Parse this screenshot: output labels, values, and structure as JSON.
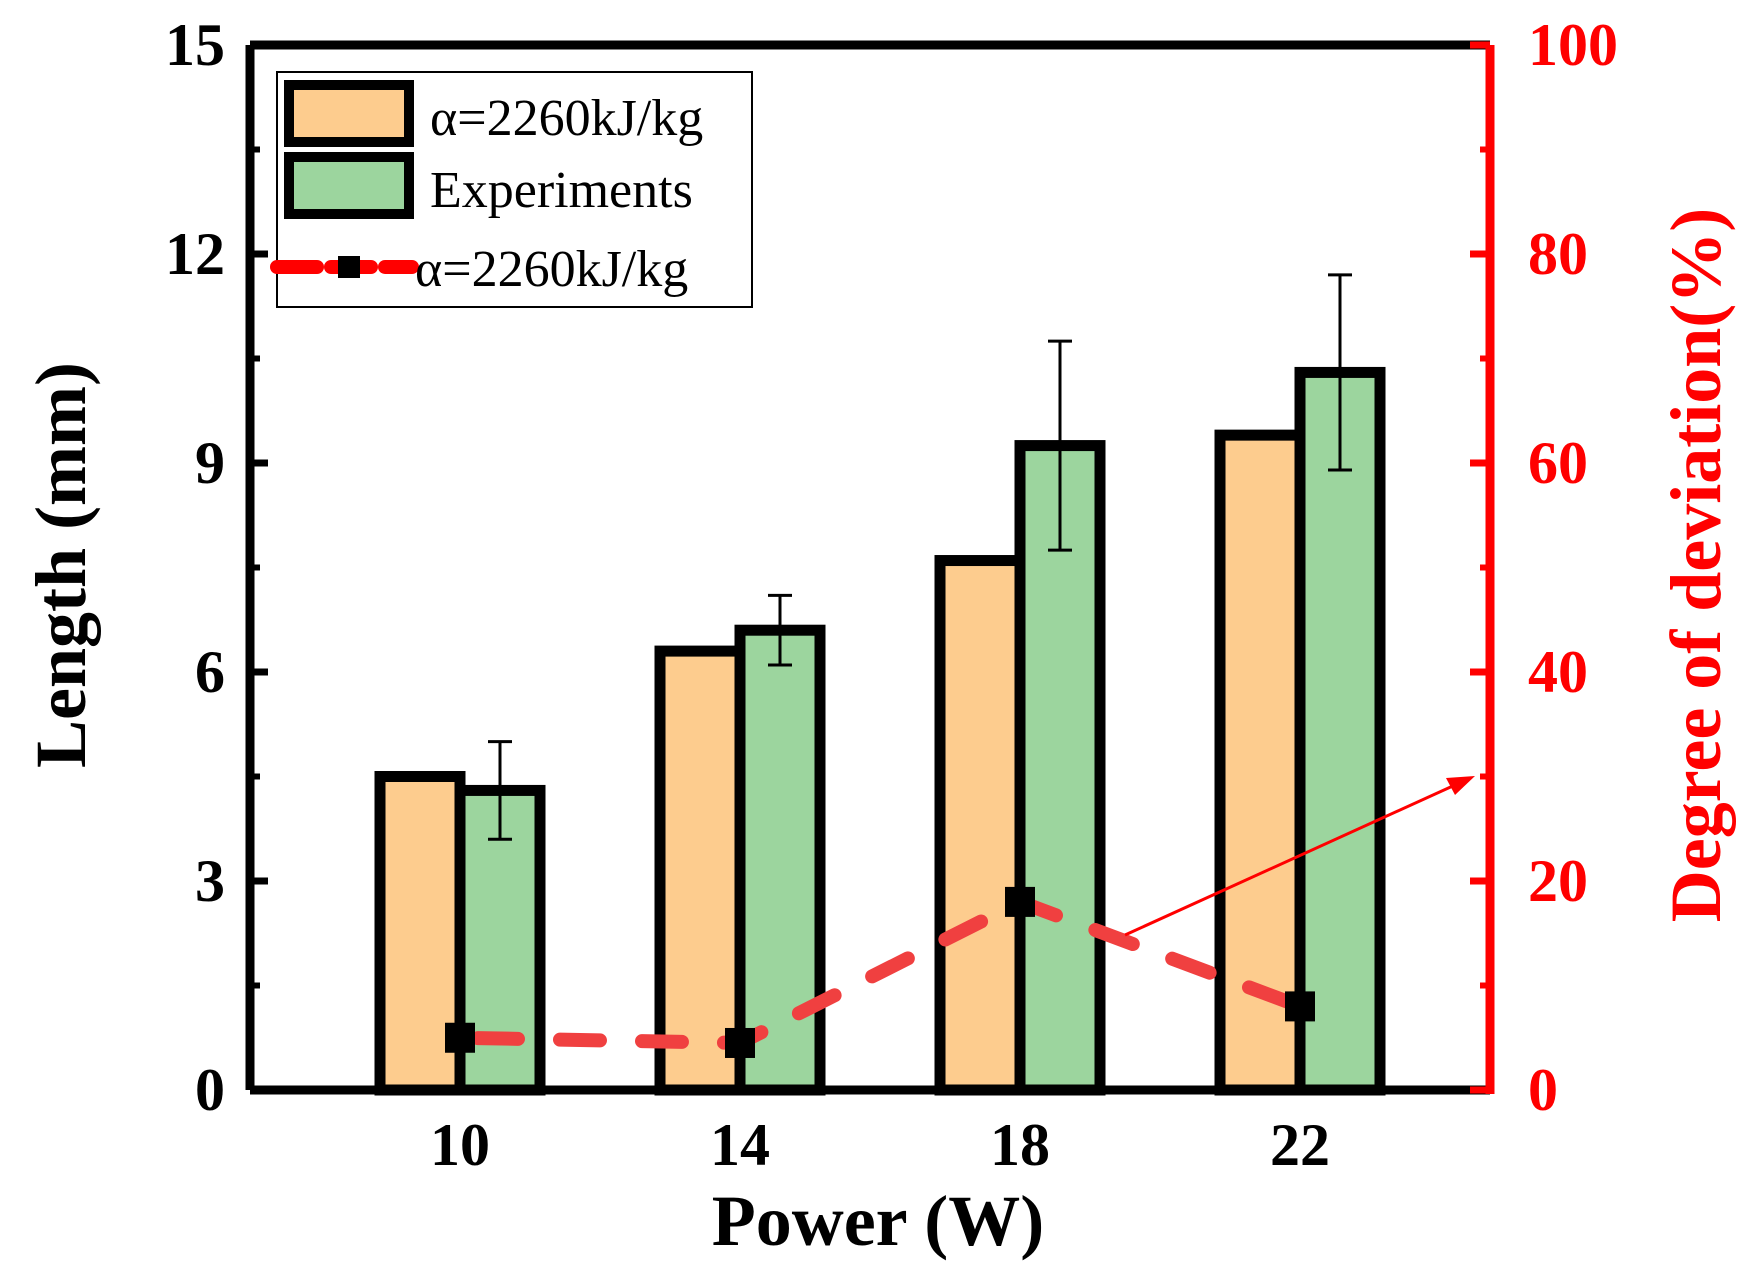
{
  "chart_data": {
    "type": "bar",
    "categories": [
      "10",
      "14",
      "18",
      "22"
    ],
    "xlabel": "Power (W)",
    "ylabel": "Length (mm)",
    "y2label": "Degree of deviation(%)",
    "ylim": [
      0,
      15
    ],
    "y2lim": [
      0,
      100
    ],
    "yticks": [
      "0",
      "3",
      "6",
      "9",
      "12",
      "15"
    ],
    "y2ticks": [
      "0",
      "20",
      "40",
      "60",
      "80",
      "100"
    ],
    "series": [
      {
        "name": "α=2260kJ/kg",
        "kind": "bar",
        "axis": "left",
        "values": [
          4.5,
          6.3,
          7.6,
          9.4
        ],
        "color": "#fdcc8e"
      },
      {
        "name": "Experiments",
        "kind": "bar",
        "axis": "left",
        "values": [
          4.3,
          6.6,
          9.25,
          10.3
        ],
        "errors": [
          0.7,
          0.5,
          1.5,
          1.4
        ],
        "color": "#9cd59e"
      },
      {
        "name": "α=2260kJ/kg",
        "kind": "line",
        "axis": "right",
        "values": [
          5.0,
          4.5,
          18.0,
          8.0
        ],
        "color": "#f04040"
      }
    ]
  }
}
